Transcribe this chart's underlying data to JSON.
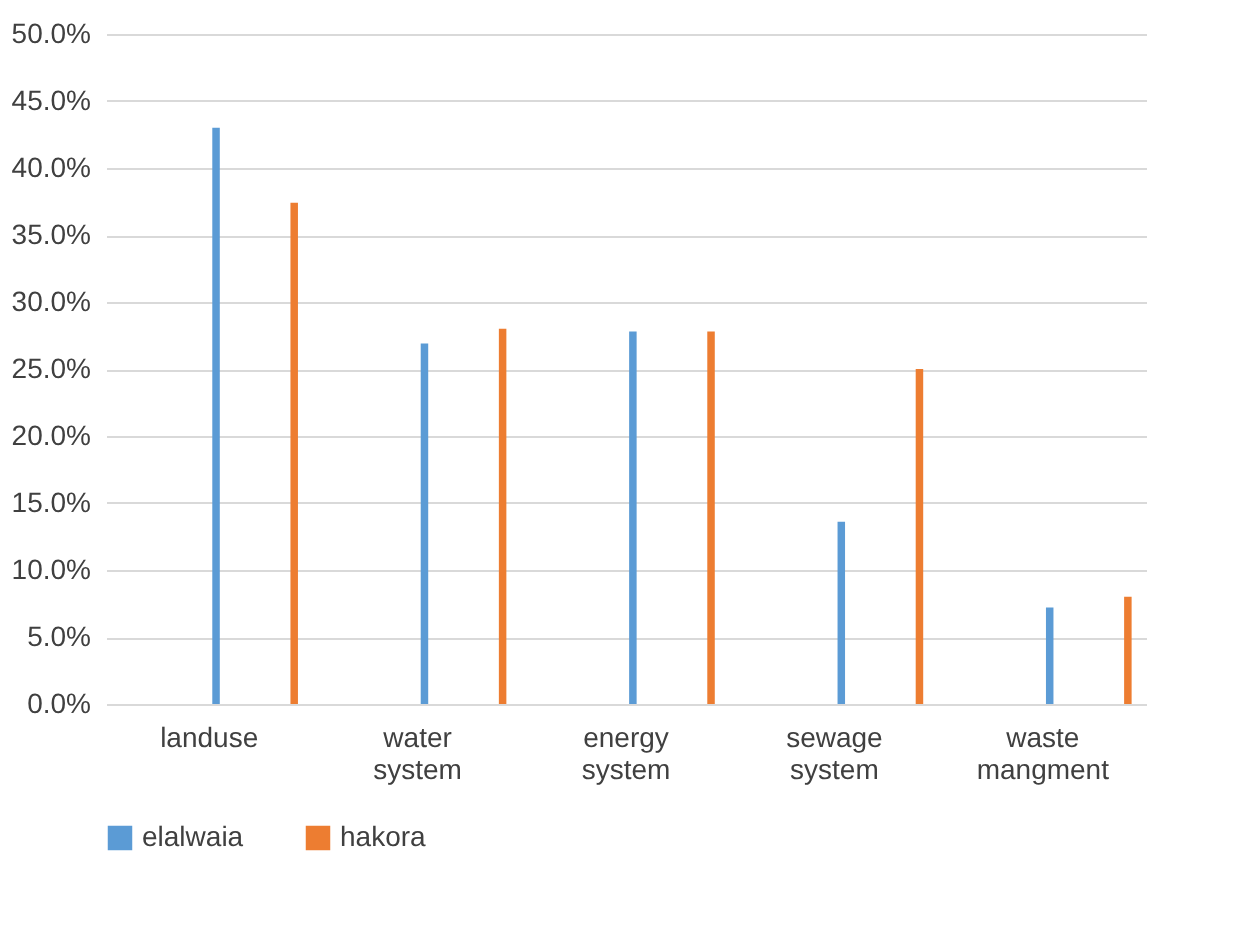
{
  "chart_data": {
    "type": "bar",
    "categories": [
      "landuse",
      "water system",
      "energy system",
      "sewage system",
      "waste mangment"
    ],
    "series": [
      {
        "name": "elalwaia",
        "color": "#5b9bd5",
        "values": [
          43.0,
          26.9,
          27.8,
          13.6,
          7.2
        ]
      },
      {
        "name": "hakora",
        "color": "#ed7d31",
        "values": [
          37.4,
          28.0,
          27.8,
          25.0,
          8.0
        ]
      }
    ],
    "ylim": [
      0,
      50
    ],
    "yticks": [
      {
        "value": 0,
        "label": "0.0%"
      },
      {
        "value": 5,
        "label": "5.0%"
      },
      {
        "value": 10,
        "label": "10.0%"
      },
      {
        "value": 15,
        "label": "15.0%"
      },
      {
        "value": 20,
        "label": "20.0%"
      },
      {
        "value": 25,
        "label": "25.0%"
      },
      {
        "value": 30,
        "label": "30.0%"
      },
      {
        "value": 35,
        "label": "35.0%"
      },
      {
        "value": 40,
        "label": "40.0%"
      },
      {
        "value": 45,
        "label": "45.0%"
      },
      {
        "value": 50,
        "label": "50.0%"
      }
    ],
    "grid": "y",
    "legend": "bottom"
  }
}
